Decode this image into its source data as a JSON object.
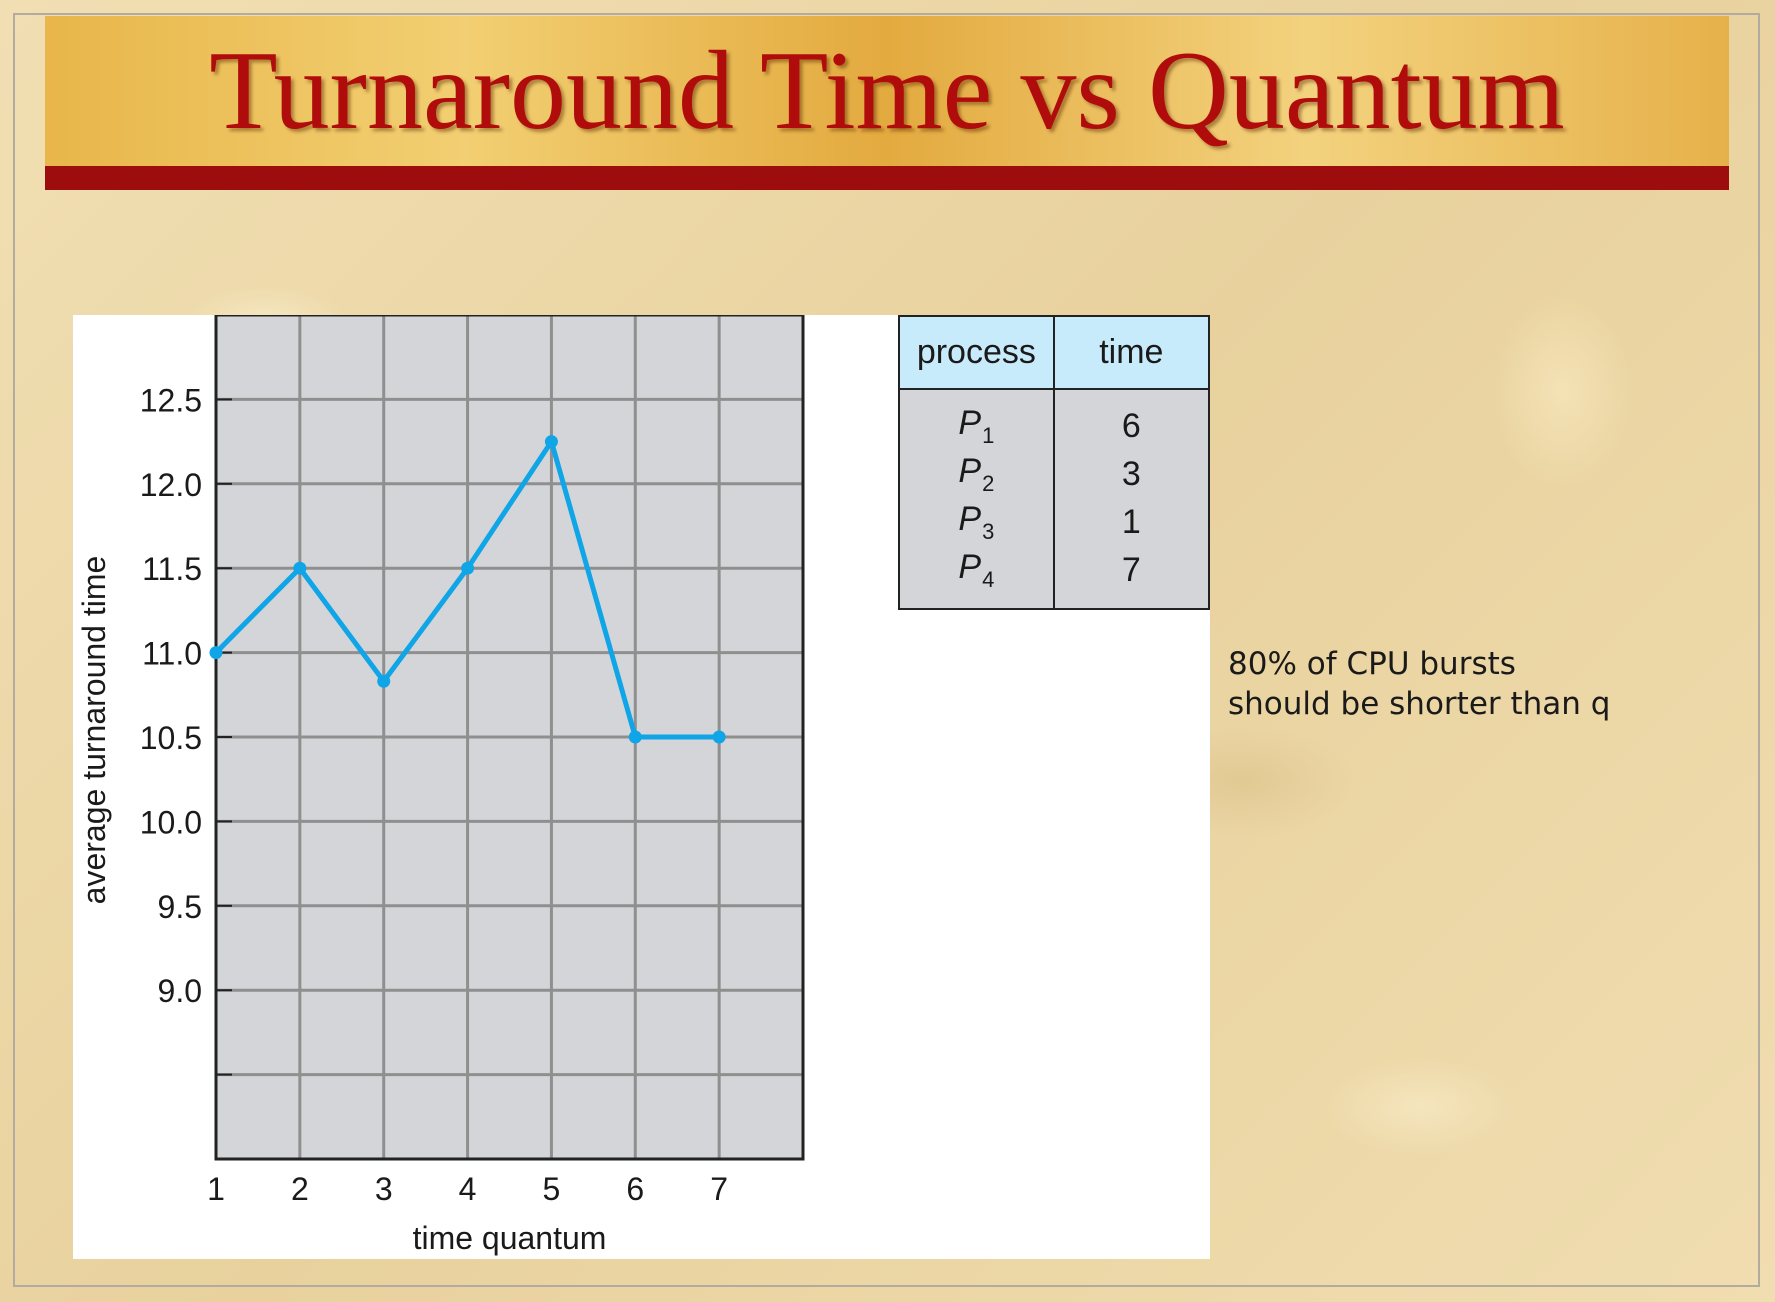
{
  "slide": {
    "title": "Turnaround Time vs Quantum",
    "note_lines": [
      "80% of CPU bursts",
      "should be shorter than q"
    ]
  },
  "process_table": {
    "headers": [
      "process",
      "time"
    ],
    "rows": [
      {
        "name": "P",
        "sub": "1",
        "time": "6"
      },
      {
        "name": "P",
        "sub": "2",
        "time": "3"
      },
      {
        "name": "P",
        "sub": "3",
        "time": "1"
      },
      {
        "name": "P",
        "sub": "4",
        "time": "7"
      }
    ]
  },
  "colors": {
    "title_red": "#b10c0c",
    "line_blue": "#0fa5e6",
    "plot_gray": "#d4d5d8",
    "grid_gray": "#8f8f8f",
    "table_header_blue": "#c8ebfb"
  },
  "chart_data": {
    "type": "line",
    "x": [
      1,
      2,
      3,
      4,
      5,
      6,
      7
    ],
    "series": [
      {
        "values": [
          11.0,
          11.5,
          10.83,
          11.5,
          12.25,
          10.5,
          10.5
        ]
      }
    ],
    "xticks": [
      "1",
      "2",
      "3",
      "4",
      "5",
      "6",
      "7"
    ],
    "yticks": [
      "9.0",
      "9.5",
      "10.0",
      "10.5",
      "11.0",
      "11.5",
      "12.0",
      "12.5"
    ],
    "xlabel": "time quantum",
    "ylabel": "average turnaround time",
    "xlim": [
      1,
      8
    ],
    "ylim": [
      8.0,
      13.0
    ],
    "grid": true
  }
}
